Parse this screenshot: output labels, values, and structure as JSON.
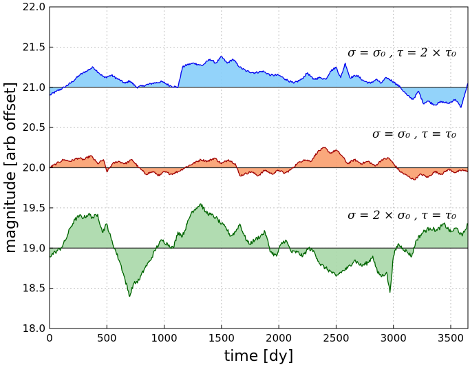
{
  "chart_data": {
    "type": "area",
    "xlabel": "time [dy]",
    "ylabel": "magnitude [arb offset]",
    "xlim": [
      0,
      3650
    ],
    "ylim": [
      18.0,
      22.0
    ],
    "xticks": [
      0,
      500,
      1000,
      1500,
      2000,
      2500,
      3000,
      3500
    ],
    "yticks": [
      "18.0",
      "18.5",
      "19.0",
      "19.5",
      "20.0",
      "20.5",
      "21.0",
      "21.5",
      "22.0"
    ],
    "grid": true,
    "series": [
      {
        "baseline": 21.0,
        "annotation": "σ = σ₀ ,  τ = 2 × τ₀",
        "line_color": "#0000ee",
        "fill_color": "#87cefa",
        "x": [
          0,
          60,
          130,
          200,
          260,
          320,
          380,
          430,
          480,
          540,
          600,
          660,
          700,
          760,
          820,
          900,
          980,
          1050,
          1120,
          1160,
          1200,
          1260,
          1330,
          1400,
          1450,
          1500,
          1550,
          1600,
          1660,
          1720,
          1790,
          1860,
          1930,
          2000,
          2060,
          2130,
          2200,
          2250,
          2300,
          2360,
          2410,
          2450,
          2500,
          2540,
          2580,
          2620,
          2680,
          2740,
          2800,
          2850,
          2890,
          2940,
          3000,
          3060,
          3120,
          3170,
          3220,
          3260,
          3300,
          3360,
          3420,
          3480,
          3540,
          3590,
          3630,
          3650
        ],
        "y": [
          20.9,
          20.95,
          21.0,
          21.07,
          21.15,
          21.2,
          21.25,
          21.18,
          21.12,
          21.15,
          21.1,
          21.05,
          21.08,
          21.0,
          21.02,
          21.05,
          21.07,
          21.02,
          21.0,
          21.25,
          21.28,
          21.3,
          21.27,
          21.35,
          21.3,
          21.38,
          21.3,
          21.35,
          21.25,
          21.2,
          21.18,
          21.2,
          21.15,
          21.15,
          21.1,
          21.05,
          21.1,
          21.18,
          21.1,
          21.12,
          21.1,
          21.2,
          21.25,
          21.12,
          21.3,
          21.12,
          21.15,
          21.08,
          21.05,
          21.1,
          21.05,
          21.12,
          21.07,
          21.0,
          20.9,
          20.85,
          20.95,
          20.8,
          20.83,
          20.78,
          20.82,
          20.8,
          20.85,
          20.75,
          20.95,
          21.05
        ]
      },
      {
        "baseline": 20.0,
        "annotation": "σ = σ₀ ,  τ = τ₀",
        "line_color": "#a00000",
        "fill_color": "#fa9e6e",
        "x": [
          0,
          60,
          120,
          180,
          250,
          300,
          360,
          420,
          470,
          500,
          550,
          600,
          660,
          720,
          780,
          840,
          900,
          960,
          1000,
          1060,
          1120,
          1180,
          1250,
          1320,
          1380,
          1440,
          1500,
          1560,
          1620,
          1660,
          1700,
          1760,
          1820,
          1880,
          1940,
          2000,
          2050,
          2100,
          2160,
          2220,
          2280,
          2340,
          2400,
          2450,
          2500,
          2550,
          2600,
          2660,
          2720,
          2780,
          2840,
          2900,
          2960,
          3000,
          3060,
          3120,
          3180,
          3240,
          3300,
          3360,
          3420,
          3480,
          3540,
          3600,
          3650
        ],
        "y": [
          20.0,
          20.05,
          20.1,
          20.08,
          20.12,
          20.1,
          20.15,
          20.05,
          20.1,
          19.95,
          20.05,
          20.08,
          20.05,
          20.1,
          20.0,
          19.92,
          19.95,
          19.9,
          19.95,
          19.92,
          19.95,
          20.0,
          20.05,
          20.1,
          20.08,
          20.12,
          20.05,
          20.1,
          20.05,
          19.9,
          19.92,
          19.95,
          19.9,
          19.97,
          19.92,
          19.97,
          19.93,
          19.97,
          20.05,
          20.1,
          20.08,
          20.2,
          20.25,
          20.18,
          20.22,
          20.15,
          20.05,
          20.1,
          20.05,
          20.08,
          20.02,
          20.1,
          20.12,
          20.05,
          19.95,
          19.9,
          19.85,
          19.92,
          19.88,
          19.95,
          19.92,
          19.98,
          19.94,
          19.97,
          19.95
        ]
      },
      {
        "baseline": 19.0,
        "annotation": "σ = 2 × σ₀ ,  τ = τ₀",
        "line_color": "#006400",
        "fill_color": "#a8d8a8",
        "x": [
          0,
          50,
          100,
          140,
          180,
          220,
          260,
          300,
          340,
          380,
          420,
          460,
          500,
          540,
          580,
          620,
          660,
          700,
          730,
          780,
          830,
          880,
          930,
          980,
          1030,
          1080,
          1120,
          1160,
          1200,
          1240,
          1280,
          1320,
          1360,
          1400,
          1450,
          1500,
          1540,
          1580,
          1620,
          1660,
          1700,
          1740,
          1790,
          1840,
          1880,
          1930,
          1980,
          2020,
          2060,
          2110,
          2160,
          2210,
          2260,
          2310,
          2360,
          2410,
          2460,
          2500,
          2540,
          2600,
          2660,
          2720,
          2780,
          2820,
          2860,
          2900,
          2940,
          2970,
          3000,
          3040,
          3080,
          3120,
          3160,
          3200,
          3260,
          3320,
          3380,
          3440,
          3500,
          3550,
          3600,
          3650
        ],
        "y": [
          18.9,
          18.95,
          19.0,
          19.1,
          19.25,
          19.35,
          19.4,
          19.38,
          19.42,
          19.38,
          19.42,
          19.2,
          19.3,
          19.1,
          18.95,
          18.8,
          18.6,
          18.4,
          18.55,
          18.6,
          18.75,
          18.85,
          19.0,
          19.1,
          19.05,
          19.0,
          19.2,
          19.15,
          19.3,
          19.45,
          19.5,
          19.55,
          19.45,
          19.42,
          19.38,
          19.3,
          19.25,
          19.15,
          19.2,
          19.3,
          19.15,
          19.05,
          19.1,
          19.15,
          19.2,
          18.95,
          18.9,
          19.05,
          19.1,
          18.95,
          18.95,
          18.9,
          19.0,
          18.95,
          18.8,
          18.75,
          18.7,
          18.65,
          18.7,
          18.75,
          18.85,
          18.78,
          18.82,
          18.9,
          18.7,
          18.65,
          18.7,
          18.45,
          18.9,
          19.05,
          19.0,
          18.95,
          18.9,
          19.1,
          19.2,
          19.25,
          19.22,
          19.3,
          19.2,
          19.25,
          19.15,
          19.3
        ]
      }
    ]
  }
}
